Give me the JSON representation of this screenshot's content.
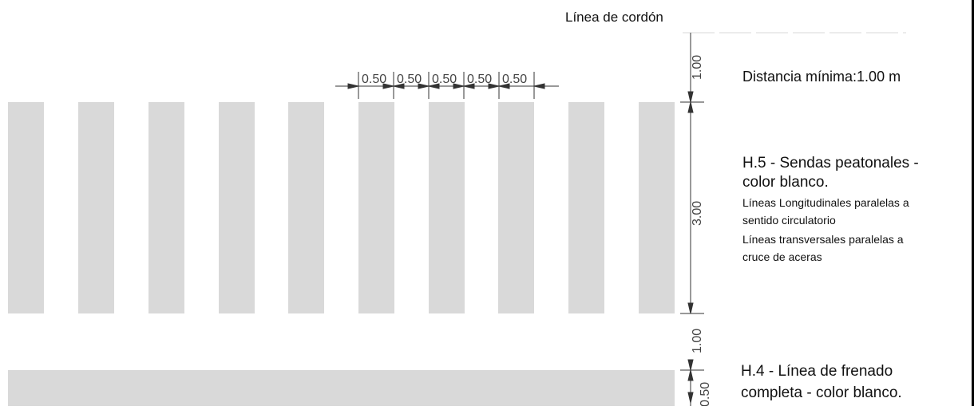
{
  "kerb_line_label": "Línea de cordón",
  "min_distance_label": "Distancia mínima:1.00 m",
  "h5": {
    "title_line1": "H.5 - Sendas peatonales -",
    "title_line2": "color blanco.",
    "note_line1": "Líneas Longitudinales paralelas a",
    "note_line2": "sentido circulatorio",
    "note_line3": "Líneas transversales paralelas a",
    "note_line4": "cruce de aceras"
  },
  "h4": {
    "line1": "H.4 - Línea de frenado",
    "line2": "completa - color blanco."
  },
  "dimensions": {
    "stripe_spacing": [
      "0.50",
      "0.50",
      "0.50",
      "0.50",
      "0.50"
    ],
    "vertical_top_gap": "1.00",
    "stripe_length": "3.00",
    "vertical_bottom_gap": "1.00",
    "stop_line_width": "0.50"
  },
  "colors": {
    "marking": "#d9d9d9",
    "dimension_line": "#333333",
    "background": "#ffffff"
  }
}
